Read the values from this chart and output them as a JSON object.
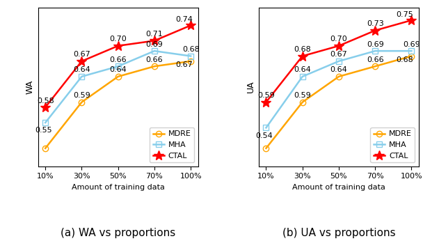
{
  "x_labels": [
    "10%",
    "30%",
    "50%",
    "70%",
    "100%"
  ],
  "x_values": [
    0,
    1,
    2,
    3,
    4
  ],
  "wa": {
    "MDRE": [
      0.5,
      0.59,
      0.64,
      0.66,
      0.67
    ],
    "MHA": [
      0.55,
      0.64,
      0.66,
      0.69,
      0.68
    ],
    "CTAL": [
      0.58,
      0.67,
      0.7,
      0.71,
      0.74
    ]
  },
  "ua": {
    "MDRE": [
      0.5,
      0.59,
      0.64,
      0.66,
      0.68
    ],
    "MHA": [
      0.54,
      0.64,
      0.67,
      0.69,
      0.69
    ],
    "CTAL": [
      0.59,
      0.68,
      0.7,
      0.73,
      0.75
    ]
  },
  "colors": {
    "MDRE": "#FFA500",
    "MHA": "#87CEEB",
    "CTAL": "#FF0000"
  },
  "markers": {
    "MDRE": "o",
    "MHA": "s",
    "CTAL": "*"
  },
  "ylabel_wa": "WA",
  "ylabel_ua": "UA",
  "xlabel": "Amount of training data",
  "caption_a": "(a) WA vs proportions",
  "caption_b": "(b) UA vs proportions",
  "ylim": [
    0.465,
    0.775
  ],
  "linewidth": 1.8,
  "markersize": 6,
  "markersize_star": 10,
  "fontsize_annot": 8,
  "fontsize_tick": 8,
  "fontsize_label": 9,
  "fontsize_legend": 8,
  "fontsize_caption": 11
}
